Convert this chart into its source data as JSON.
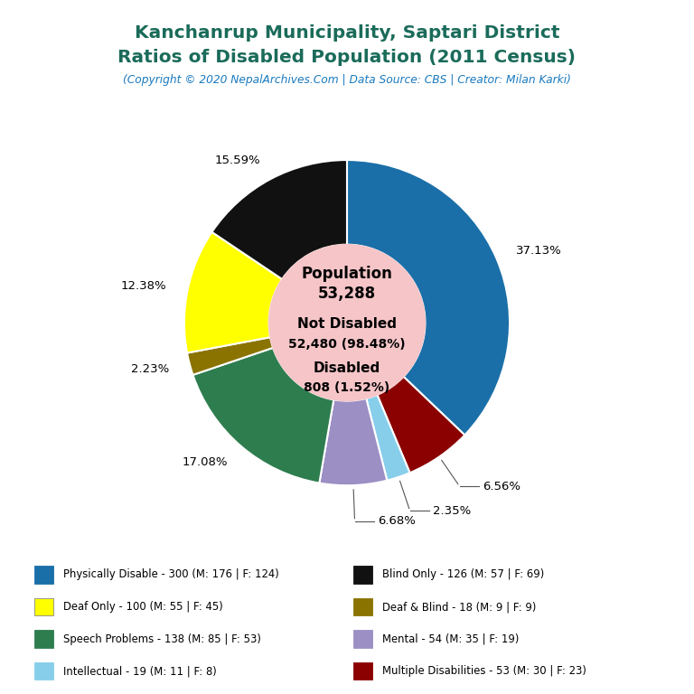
{
  "title_line1": "Kanchanrup Municipality, Saptari District",
  "title_line2": "Ratios of Disabled Population (2011 Census)",
  "title_color": "#1a6b5a",
  "subtitle": "(Copyright © 2020 NepalArchives.Com | Data Source: CBS | Creator: Milan Karki)",
  "subtitle_color": "#1a7abf",
  "center_bg_color": "#f5c5c8",
  "bg_color": "#ffffff",
  "slices": [
    {
      "label": "Physically Disable - 300 (M: 176 | F: 124)",
      "value": 300,
      "pct": "37.13%",
      "color": "#1a6fa8"
    },
    {
      "label": "Multiple Disabilities - 53 (M: 30 | F: 23)",
      "value": 53,
      "pct": "6.56%",
      "color": "#8b0000"
    },
    {
      "label": "Intellectual - 19 (M: 11 | F: 8)",
      "value": 19,
      "pct": "2.35%",
      "color": "#87ceeb"
    },
    {
      "label": "Mental - 54 (M: 35 | F: 19)",
      "value": 54,
      "pct": "6.68%",
      "color": "#9b8fc4"
    },
    {
      "label": "Speech Problems - 138 (M: 85 | F: 53)",
      "value": 138,
      "pct": "17.08%",
      "color": "#2e7d4f"
    },
    {
      "label": "Deaf & Blind - 18 (M: 9 | F: 9)",
      "value": 18,
      "pct": "2.23%",
      "color": "#8b7300"
    },
    {
      "label": "Deaf Only - 100 (M: 55 | F: 45)",
      "value": 100,
      "pct": "12.38%",
      "color": "#ffff00"
    },
    {
      "label": "Blind Only - 126 (M: 57 | F: 69)",
      "value": 126,
      "pct": "15.59%",
      "color": "#111111"
    }
  ],
  "legend_left": [
    [
      "Physically Disable - 300 (M: 176 | F: 124)",
      "#1a6fa8"
    ],
    [
      "Deaf Only - 100 (M: 55 | F: 45)",
      "#ffff00"
    ],
    [
      "Speech Problems - 138 (M: 85 | F: 53)",
      "#2e7d4f"
    ],
    [
      "Intellectual - 19 (M: 11 | F: 8)",
      "#87ceeb"
    ]
  ],
  "legend_right": [
    [
      "Blind Only - 126 (M: 57 | F: 69)",
      "#111111"
    ],
    [
      "Deaf & Blind - 18 (M: 9 | F: 9)",
      "#8b7300"
    ],
    [
      "Mental - 54 (M: 35 | F: 19)",
      "#9b8fc4"
    ],
    [
      "Multiple Disabilities - 53 (M: 30 | F: 23)",
      "#8b0000"
    ]
  ]
}
